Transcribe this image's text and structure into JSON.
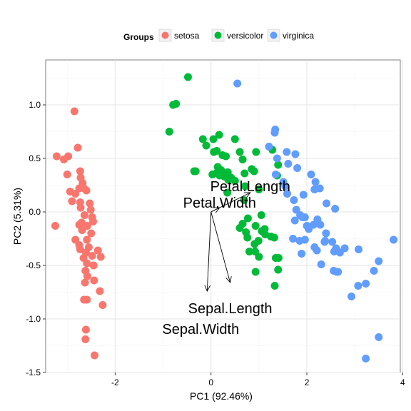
{
  "chart_data": {
    "type": "scatter",
    "xlabel": "PC1 (92.46%)",
    "ylabel": "PC2 (5.31%)",
    "xlim": [
      -3.45,
      3.95
    ],
    "ylim": [
      -1.5,
      1.42
    ],
    "x_ticks": [
      -2,
      0,
      2,
      4
    ],
    "y_ticks": [
      -1.5,
      -1.0,
      -0.5,
      0.0,
      0.5,
      1.0
    ],
    "x_tick_labels": [
      "-2",
      "0",
      "2",
      "4"
    ],
    "y_tick_labels": [
      "-1.5",
      "-1.0",
      "-0.5",
      "0.0",
      "0.5",
      "1.0"
    ],
    "grid": true,
    "legend": {
      "title": "Groups",
      "placement": "top",
      "entries": [
        {
          "name": "setosa",
          "color": "#F8766D"
        },
        {
          "name": "versicolor",
          "color": "#00BA38"
        },
        {
          "name": "virginica",
          "color": "#619CFF"
        }
      ]
    },
    "series": [
      {
        "name": "setosa",
        "color": "#F8766D",
        "points": [
          [
            -2.85,
            0.94
          ],
          [
            -2.78,
            0.6
          ],
          [
            -3.22,
            0.52
          ],
          [
            -3.07,
            0.49
          ],
          [
            -2.98,
            0.52
          ],
          [
            -3.0,
            0.35
          ],
          [
            -2.94,
            0.19
          ],
          [
            -2.9,
            0.1
          ],
          [
            -3.25,
            -0.13
          ],
          [
            -2.75,
            -0.12
          ],
          [
            -2.73,
            0.38
          ],
          [
            -2.72,
            0.32
          ],
          [
            -2.68,
            0.27
          ],
          [
            -2.75,
            0.22
          ],
          [
            -2.65,
            0.22
          ],
          [
            -2.6,
            0.2
          ],
          [
            -2.83,
            0.17
          ],
          [
            -2.73,
            0.09
          ],
          [
            -2.53,
            0.08
          ],
          [
            -2.51,
            0.02
          ],
          [
            -2.72,
            0.04
          ],
          [
            -2.64,
            -0.03
          ],
          [
            -2.48,
            -0.05
          ],
          [
            -2.7,
            -0.1
          ],
          [
            -2.46,
            -0.09
          ],
          [
            -2.58,
            -0.13
          ],
          [
            -2.69,
            -0.17
          ],
          [
            -2.5,
            -0.2
          ],
          [
            -2.59,
            -0.26
          ],
          [
            -2.83,
            -0.26
          ],
          [
            -2.75,
            -0.31
          ],
          [
            -2.55,
            -0.33
          ],
          [
            -2.73,
            -0.35
          ],
          [
            -2.61,
            -0.38
          ],
          [
            -2.36,
            -0.36
          ],
          [
            -2.66,
            -0.43
          ],
          [
            -2.48,
            -0.41
          ],
          [
            -2.3,
            -0.42
          ],
          [
            -2.59,
            -0.48
          ],
          [
            -2.45,
            -0.5
          ],
          [
            -2.62,
            -0.55
          ],
          [
            -2.58,
            -0.6
          ],
          [
            -2.63,
            -0.66
          ],
          [
            -2.44,
            -0.64
          ],
          [
            -2.32,
            -0.74
          ],
          [
            -2.65,
            -0.82
          ],
          [
            -2.59,
            -0.82
          ],
          [
            -2.26,
            -0.87
          ],
          [
            -2.61,
            -1.1
          ],
          [
            -2.62,
            -1.19
          ],
          [
            -2.43,
            -1.34
          ]
        ]
      },
      {
        "name": "versicolor",
        "color": "#00BA38",
        "points": [
          [
            -0.48,
            1.26
          ],
          [
            -0.73,
            1.01
          ],
          [
            -0.79,
            1.0
          ],
          [
            -0.87,
            0.75
          ],
          [
            0.17,
            0.72
          ],
          [
            0.05,
            0.68
          ],
          [
            -0.17,
            0.68
          ],
          [
            -0.1,
            0.62
          ],
          [
            0.5,
            0.68
          ],
          [
            0.12,
            0.57
          ],
          [
            0.06,
            0.56
          ],
          [
            0.24,
            0.53
          ],
          [
            0.31,
            0.52
          ],
          [
            0.6,
            0.56
          ],
          [
            0.66,
            0.49
          ],
          [
            0.94,
            0.56
          ],
          [
            1.28,
            0.58
          ],
          [
            1.4,
            0.44
          ],
          [
            0.85,
            0.4
          ],
          [
            0.21,
            0.39
          ],
          [
            0.28,
            0.33
          ],
          [
            0.36,
            0.3
          ],
          [
            0.42,
            0.32
          ],
          [
            0.35,
            0.37
          ],
          [
            0.13,
            0.37
          ],
          [
            0.03,
            0.35
          ],
          [
            0.18,
            0.34
          ],
          [
            0.14,
            0.42
          ],
          [
            0.7,
            0.36
          ],
          [
            0.9,
            0.38
          ],
          [
            -0.32,
            0.38
          ],
          [
            -0.35,
            0.38
          ],
          [
            0.5,
            0.29
          ],
          [
            0.71,
            0.24
          ],
          [
            1.0,
            0.21
          ],
          [
            1.38,
            0.34
          ],
          [
            0.34,
            0.18
          ],
          [
            0.69,
            0.11
          ],
          [
            1.05,
            -0.03
          ],
          [
            0.77,
            -0.06
          ],
          [
            0.66,
            -0.11
          ],
          [
            0.93,
            -0.13
          ],
          [
            0.6,
            -0.15
          ],
          [
            1.12,
            -0.16
          ],
          [
            0.73,
            -0.19
          ],
          [
            1.06,
            -0.18
          ],
          [
            0.76,
            -0.24
          ],
          [
            1.13,
            -0.21
          ],
          [
            0.91,
            -0.3
          ],
          [
            1.25,
            -0.23
          ],
          [
            1.32,
            -0.24
          ],
          [
            0.99,
            -0.27
          ],
          [
            0.8,
            -0.37
          ],
          [
            1.0,
            -0.42
          ],
          [
            1.35,
            -0.43
          ],
          [
            1.4,
            -0.54
          ],
          [
            1.41,
            -0.43
          ],
          [
            0.93,
            -0.56
          ],
          [
            1.33,
            -0.69
          ],
          [
            0.92,
            -0.37
          ]
        ]
      },
      {
        "name": "virginica",
        "color": "#619CFF",
        "points": [
          [
            0.55,
            1.2
          ],
          [
            1.34,
            0.77
          ],
          [
            1.33,
            0.74
          ],
          [
            1.21,
            0.61
          ],
          [
            1.58,
            0.56
          ],
          [
            1.76,
            0.54
          ],
          [
            1.38,
            0.5
          ],
          [
            1.61,
            0.45
          ],
          [
            1.8,
            0.41
          ],
          [
            2.09,
            0.35
          ],
          [
            2.18,
            0.28
          ],
          [
            2.16,
            0.21
          ],
          [
            2.27,
            0.22
          ],
          [
            2.41,
            0.08
          ],
          [
            2.59,
            0.03
          ],
          [
            1.35,
            0.35
          ],
          [
            1.51,
            0.28
          ],
          [
            1.55,
            0.24
          ],
          [
            1.59,
            0.17
          ],
          [
            1.93,
            0.16
          ],
          [
            1.73,
            0.11
          ],
          [
            1.78,
            0.02
          ],
          [
            1.86,
            -0.03
          ],
          [
            1.91,
            -0.05
          ],
          [
            1.96,
            -0.05
          ],
          [
            2.22,
            -0.07
          ],
          [
            1.75,
            -0.08
          ],
          [
            2.0,
            -0.13
          ],
          [
            2.04,
            -0.16
          ],
          [
            2.14,
            -0.12
          ],
          [
            2.28,
            -0.12
          ],
          [
            2.4,
            -0.2
          ],
          [
            2.37,
            -0.28
          ],
          [
            1.71,
            -0.25
          ],
          [
            1.85,
            -0.27
          ],
          [
            1.96,
            -0.26
          ],
          [
            2.16,
            -0.33
          ],
          [
            2.38,
            -0.27
          ],
          [
            2.53,
            -0.28
          ],
          [
            2.61,
            -0.34
          ],
          [
            2.57,
            -0.37
          ],
          [
            2.69,
            -0.38
          ],
          [
            2.79,
            -0.34
          ],
          [
            3.08,
            -0.35
          ],
          [
            3.81,
            -0.26
          ],
          [
            3.5,
            -0.46
          ],
          [
            1.89,
            -0.39
          ],
          [
            2.21,
            -0.36
          ],
          [
            2.3,
            -0.49
          ],
          [
            2.56,
            -0.55
          ],
          [
            3.4,
            -0.55
          ],
          [
            2.62,
            -0.56
          ],
          [
            2.65,
            -0.56
          ],
          [
            3.23,
            -0.67
          ],
          [
            3.07,
            -0.69
          ],
          [
            2.93,
            -0.79
          ],
          [
            3.5,
            -1.17
          ],
          [
            3.23,
            -1.37
          ]
        ]
      }
    ],
    "loadings": [
      {
        "name": "Petal.Length",
        "x": 0.82,
        "y": 0.18
      },
      {
        "name": "Petal.Width",
        "x": 0.18,
        "y": 0.04
      },
      {
        "name": "Sepal.Length",
        "x": 0.4,
        "y": -0.66
      },
      {
        "name": "Sepal.Width",
        "x": -0.08,
        "y": -0.74
      }
    ]
  }
}
